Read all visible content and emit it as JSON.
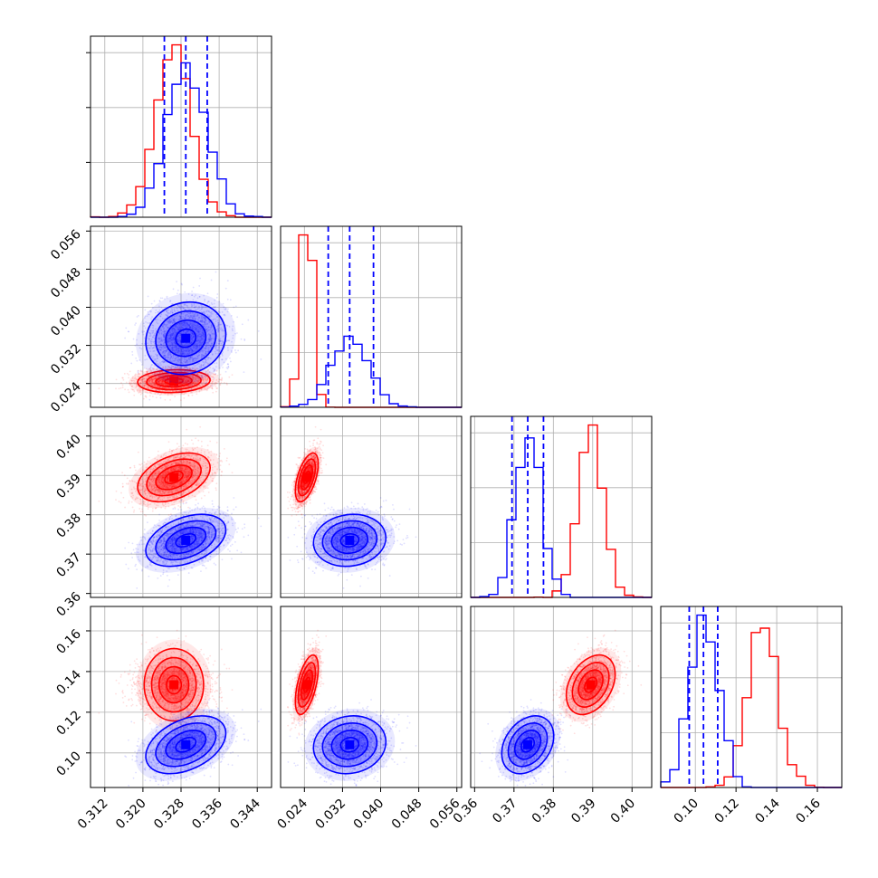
{
  "chart_data": {
    "type": "corner",
    "colors": {
      "a": "#ff0000",
      "b": "#0000ff"
    },
    "grid": true,
    "parameters": [
      {
        "range": [
          0.309,
          0.347
        ],
        "ticks": [
          "0.312",
          "0.320",
          "0.328",
          "0.336",
          "0.344"
        ]
      },
      {
        "range": [
          0.019,
          0.057
        ],
        "ticks": [
          "0.024",
          "0.032",
          "0.040",
          "0.048",
          "0.056"
        ]
      },
      {
        "range": [
          0.359,
          0.405
        ],
        "ticks": [
          "0.36",
          "0.37",
          "0.38",
          "0.39",
          "0.40"
        ]
      },
      {
        "range": [
          0.083,
          0.172
        ],
        "ticks": [
          "0.10",
          "0.12",
          "0.14",
          "0.16"
        ]
      }
    ],
    "series": [
      {
        "color": "#ff0000",
        "mean": [
          0.3265,
          0.0245,
          0.3895,
          0.1335
        ],
        "std": [
          0.0038,
          0.0012,
          0.0031,
          0.0073
        ],
        "corr": [
          [
            1,
            0.1,
            0.4,
            0.0
          ],
          [
            0.1,
            1,
            0.55,
            0.55
          ],
          [
            0.4,
            0.55,
            1,
            0.35
          ],
          [
            0.0,
            0.55,
            0.35,
            1
          ]
        ]
      },
      {
        "color": "#0000ff",
        "mean": [
          0.329,
          0.0335,
          0.3735,
          0.104
        ],
        "std": [
          0.0042,
          0.0038,
          0.0033,
          0.0071
        ],
        "corr": [
          [
            1,
            0.1,
            0.4,
            0.4
          ],
          [
            0.1,
            1,
            0.1,
            0.1
          ],
          [
            0.4,
            0.1,
            1,
            0.3
          ],
          [
            0.4,
            0.1,
            0.3,
            1
          ]
        ]
      }
    ],
    "quantiles": [
      [
        0.3245,
        0.329,
        0.3335
      ],
      [
        0.029,
        0.0335,
        0.0385
      ],
      [
        0.3695,
        0.3735,
        0.3775
      ],
      [
        0.097,
        0.104,
        0.111
      ]
    ],
    "quantile_color": "#0000ff"
  }
}
